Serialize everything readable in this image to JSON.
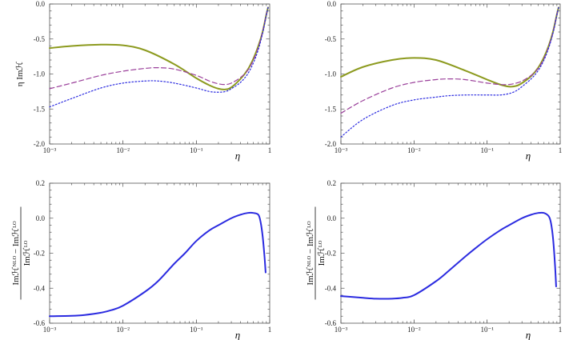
{
  "colors": {
    "olive": "#8c9a1e",
    "purple": "#9a3f9a",
    "blue": "#2b2be0"
  },
  "chart_data": [
    {
      "type": "line",
      "panel": "top-left",
      "xscale": "log",
      "xlim": [
        0.001,
        1
      ],
      "ylim": [
        -2.0,
        0.0
      ],
      "xticks": [
        {
          "v": 0.001,
          "label": "10⁻³"
        },
        {
          "v": 0.01,
          "label": "10⁻²"
        },
        {
          "v": 0.1,
          "label": "10⁻¹"
        },
        {
          "v": 1,
          "label": "1"
        }
      ],
      "yticks": [
        {
          "v": 0.0,
          "label": "0.0"
        },
        {
          "v": -0.5,
          "label": "-0.5"
        },
        {
          "v": -1.0,
          "label": "-1.0"
        },
        {
          "v": -1.5,
          "label": "-1.5"
        },
        {
          "v": -2.0,
          "label": "-2.0"
        }
      ],
      "xlabel": "η",
      "ylabel": "η Imℋ",
      "series": [
        {
          "name": "solid",
          "style": "solid",
          "color": "#8c9a1e",
          "x": [
            0.001,
            0.002,
            0.005,
            0.01,
            0.02,
            0.05,
            0.1,
            0.15,
            0.2,
            0.25,
            0.3,
            0.4,
            0.5,
            0.6,
            0.7,
            0.8,
            0.9,
            0.95
          ],
          "y": [
            -0.63,
            -0.6,
            -0.58,
            -0.59,
            -0.66,
            -0.86,
            -1.06,
            -1.16,
            -1.21,
            -1.22,
            -1.19,
            -1.07,
            -0.94,
            -0.78,
            -0.6,
            -0.4,
            -0.15,
            -0.05
          ]
        },
        {
          "name": "dashed",
          "style": "dashed",
          "color": "#9a3f9a",
          "x": [
            0.001,
            0.002,
            0.005,
            0.01,
            0.02,
            0.03,
            0.05,
            0.1,
            0.15,
            0.2,
            0.25,
            0.3,
            0.4,
            0.5,
            0.6,
            0.7,
            0.8,
            0.9,
            0.95
          ],
          "y": [
            -1.21,
            -1.13,
            -1.02,
            -0.96,
            -0.92,
            -0.91,
            -0.93,
            -1.02,
            -1.1,
            -1.14,
            -1.15,
            -1.13,
            -1.05,
            -0.95,
            -0.8,
            -0.62,
            -0.4,
            -0.15,
            -0.05
          ]
        },
        {
          "name": "dotted",
          "style": "dotted",
          "color": "#2b2be0",
          "x": [
            0.001,
            0.002,
            0.005,
            0.01,
            0.02,
            0.03,
            0.05,
            0.1,
            0.15,
            0.2,
            0.25,
            0.3,
            0.4,
            0.5,
            0.6,
            0.7,
            0.8,
            0.9,
            0.95
          ],
          "y": [
            -1.47,
            -1.35,
            -1.2,
            -1.13,
            -1.1,
            -1.1,
            -1.13,
            -1.2,
            -1.25,
            -1.26,
            -1.25,
            -1.21,
            -1.12,
            -1.0,
            -0.84,
            -0.65,
            -0.42,
            -0.16,
            -0.05
          ]
        }
      ]
    },
    {
      "type": "line",
      "panel": "top-right",
      "xscale": "log",
      "xlim": [
        0.001,
        1
      ],
      "ylim": [
        -2.0,
        0.0
      ],
      "xticks": [
        {
          "v": 0.001,
          "label": "10⁻³"
        },
        {
          "v": 0.01,
          "label": "10⁻²"
        },
        {
          "v": 0.1,
          "label": "10⁻¹"
        },
        {
          "v": 1,
          "label": "1"
        }
      ],
      "yticks": [
        {
          "v": 0.0,
          "label": "0.0"
        },
        {
          "v": -0.5,
          "label": "-0.5"
        },
        {
          "v": -1.0,
          "label": "-1.0"
        },
        {
          "v": -1.5,
          "label": "-1.5"
        },
        {
          "v": -2.0,
          "label": "-2.0"
        }
      ],
      "xlabel": "η",
      "ylabel": "",
      "series": [
        {
          "name": "solid",
          "style": "solid",
          "color": "#8c9a1e",
          "x": [
            0.001,
            0.002,
            0.005,
            0.01,
            0.02,
            0.05,
            0.1,
            0.15,
            0.2,
            0.25,
            0.3,
            0.4,
            0.5,
            0.6,
            0.7,
            0.8,
            0.9,
            0.95
          ],
          "y": [
            -1.04,
            -0.9,
            -0.8,
            -0.77,
            -0.8,
            -0.95,
            -1.08,
            -1.15,
            -1.18,
            -1.17,
            -1.13,
            -1.03,
            -0.91,
            -0.76,
            -0.59,
            -0.39,
            -0.15,
            -0.05
          ]
        },
        {
          "name": "dashed",
          "style": "dashed",
          "color": "#9a3f9a",
          "x": [
            0.001,
            0.002,
            0.005,
            0.01,
            0.02,
            0.03,
            0.05,
            0.1,
            0.15,
            0.2,
            0.25,
            0.3,
            0.4,
            0.5,
            0.6,
            0.7,
            0.8,
            0.9,
            0.95
          ],
          "y": [
            -1.56,
            -1.38,
            -1.2,
            -1.12,
            -1.08,
            -1.07,
            -1.08,
            -1.13,
            -1.15,
            -1.15,
            -1.13,
            -1.1,
            -1.02,
            -0.92,
            -0.78,
            -0.6,
            -0.4,
            -0.15,
            -0.05
          ]
        },
        {
          "name": "dotted",
          "style": "dotted",
          "color": "#2b2be0",
          "x": [
            0.001,
            0.002,
            0.005,
            0.01,
            0.02,
            0.03,
            0.05,
            0.1,
            0.15,
            0.2,
            0.25,
            0.3,
            0.4,
            0.5,
            0.6,
            0.7,
            0.8,
            0.9,
            0.95
          ],
          "y": [
            -1.9,
            -1.65,
            -1.45,
            -1.37,
            -1.33,
            -1.31,
            -1.3,
            -1.3,
            -1.3,
            -1.28,
            -1.24,
            -1.18,
            -1.07,
            -0.95,
            -0.8,
            -0.62,
            -0.41,
            -0.16,
            -0.05
          ]
        }
      ]
    },
    {
      "type": "line",
      "panel": "bottom-left",
      "xscale": "log",
      "xlim": [
        0.001,
        1
      ],
      "ylim": [
        -0.6,
        0.2
      ],
      "xticks": [
        {
          "v": 0.001,
          "label": "10⁻³"
        },
        {
          "v": 0.01,
          "label": "10⁻²"
        },
        {
          "v": 0.1,
          "label": "10⁻¹"
        },
        {
          "v": 1,
          "label": "1"
        }
      ],
      "yticks": [
        {
          "v": 0.2,
          "label": "0.2"
        },
        {
          "v": 0.0,
          "label": "0.0"
        },
        {
          "v": -0.2,
          "label": "-0.2"
        },
        {
          "v": -0.4,
          "label": "-0.4"
        },
        {
          "v": -0.6,
          "label": "-0.6"
        }
      ],
      "xlabel": "η",
      "ylabel_num": "Imℋᴺᴸᴼ − Imℋᴸᴼ",
      "ylabel_den": "Imℋᴸᴼ",
      "series": [
        {
          "name": "ratio",
          "style": "solid",
          "color": "#2b2be0",
          "x": [
            0.001,
            0.002,
            0.003,
            0.005,
            0.007,
            0.01,
            0.02,
            0.03,
            0.05,
            0.07,
            0.1,
            0.15,
            0.2,
            0.3,
            0.4,
            0.5,
            0.6,
            0.7,
            0.75,
            0.8,
            0.85,
            0.88
          ],
          "y": [
            -0.56,
            -0.558,
            -0.553,
            -0.54,
            -0.525,
            -0.5,
            -0.42,
            -0.36,
            -0.26,
            -0.2,
            -0.13,
            -0.07,
            -0.04,
            0.0,
            0.02,
            0.03,
            0.03,
            0.02,
            -0.02,
            -0.1,
            -0.22,
            -0.31
          ]
        }
      ]
    },
    {
      "type": "line",
      "panel": "bottom-right",
      "xscale": "log",
      "xlim": [
        0.001,
        1
      ],
      "ylim": [
        -0.6,
        0.2
      ],
      "xticks": [
        {
          "v": 0.001,
          "label": "10⁻³"
        },
        {
          "v": 0.01,
          "label": "10⁻²"
        },
        {
          "v": 0.1,
          "label": "10⁻¹"
        },
        {
          "v": 1,
          "label": "1"
        }
      ],
      "yticks": [
        {
          "v": 0.2,
          "label": "0.2"
        },
        {
          "v": 0.0,
          "label": "0.0"
        },
        {
          "v": -0.2,
          "label": "-0.2"
        },
        {
          "v": -0.4,
          "label": "-0.4"
        },
        {
          "v": -0.6,
          "label": "-0.6"
        }
      ],
      "xlabel": "η",
      "ylabel_num": "Imℋᴺᴸᴼ − Imℋᴸᴼ",
      "ylabel_den": "Imℋᴸᴼ",
      "series": [
        {
          "name": "ratio",
          "style": "solid",
          "color": "#2b2be0",
          "x": [
            0.001,
            0.002,
            0.003,
            0.005,
            0.007,
            0.01,
            0.02,
            0.03,
            0.05,
            0.07,
            0.1,
            0.15,
            0.2,
            0.3,
            0.4,
            0.5,
            0.6,
            0.7,
            0.75,
            0.8,
            0.85,
            0.88
          ],
          "y": [
            -0.445,
            -0.455,
            -0.46,
            -0.46,
            -0.455,
            -0.44,
            -0.36,
            -0.3,
            -0.22,
            -0.17,
            -0.12,
            -0.07,
            -0.04,
            0.0,
            0.02,
            0.03,
            0.03,
            0.01,
            -0.03,
            -0.12,
            -0.27,
            -0.39
          ]
        }
      ]
    }
  ]
}
